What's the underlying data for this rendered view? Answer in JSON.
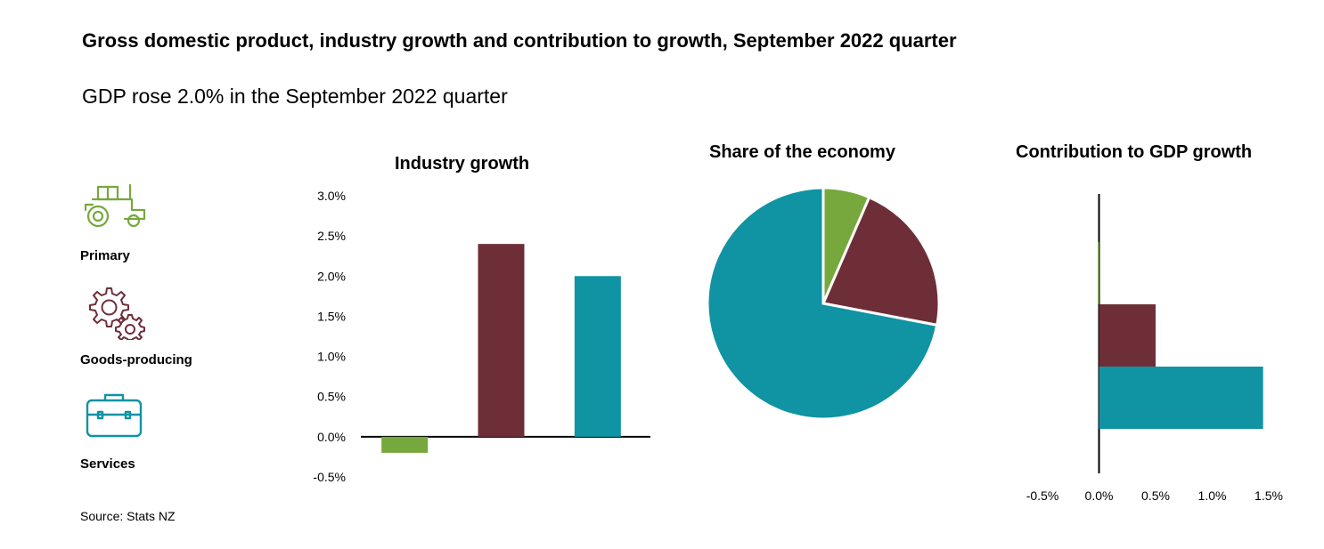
{
  "title": "Gross domestic product, industry growth and contribution to growth, September 2022 quarter",
  "subtitle": "GDP rose 2.0% in the September 2022 quarter",
  "legend": [
    {
      "label": "Primary",
      "icon": "tractor-icon",
      "color": "#76a83d"
    },
    {
      "label": "Goods-producing",
      "icon": "gears-icon",
      "color": "#6e2e38"
    },
    {
      "label": "Services",
      "icon": "briefcase-icon",
      "color": "#1093a3"
    }
  ],
  "source": "Source: Stats NZ",
  "chart_data": [
    {
      "type": "bar",
      "title": "Industry growth",
      "categories": [
        "Primary",
        "Goods-producing",
        "Services"
      ],
      "values": [
        -0.2,
        2.4,
        2.0
      ],
      "colors": [
        "#76a83d",
        "#6e2e38",
        "#1093a3"
      ],
      "ylim": [
        -0.5,
        3.0
      ],
      "yticks": [
        3.0,
        2.5,
        2.0,
        1.5,
        1.0,
        0.5,
        0.0,
        -0.5
      ],
      "ytick_labels": [
        "3.0%",
        "2.5%",
        "2.0%",
        "1.5%",
        "1.0%",
        "0.5%",
        "0.0%",
        "-0.5%"
      ],
      "grid": false
    },
    {
      "type": "pie",
      "title": "Share of the economy",
      "categories": [
        "Primary",
        "Goods-producing",
        "Services"
      ],
      "values": [
        6.5,
        21.5,
        72.0
      ],
      "colors": [
        "#76a83d",
        "#6e2e38",
        "#1093a3"
      ]
    },
    {
      "type": "bar",
      "orientation": "horizontal",
      "title": "Contribution to GDP growth",
      "categories": [
        "Primary",
        "Goods-producing",
        "Services"
      ],
      "values": [
        -0.01,
        0.5,
        1.45
      ],
      "colors": [
        "#76a83d",
        "#6e2e38",
        "#1093a3"
      ],
      "xlim": [
        -0.5,
        1.5
      ],
      "xticks": [
        -0.5,
        0.0,
        0.5,
        1.0,
        1.5
      ],
      "xtick_labels": [
        "-0.5%",
        "0.0%",
        "0.5%",
        "1.0%",
        "1.5%"
      ],
      "grid": false
    }
  ]
}
